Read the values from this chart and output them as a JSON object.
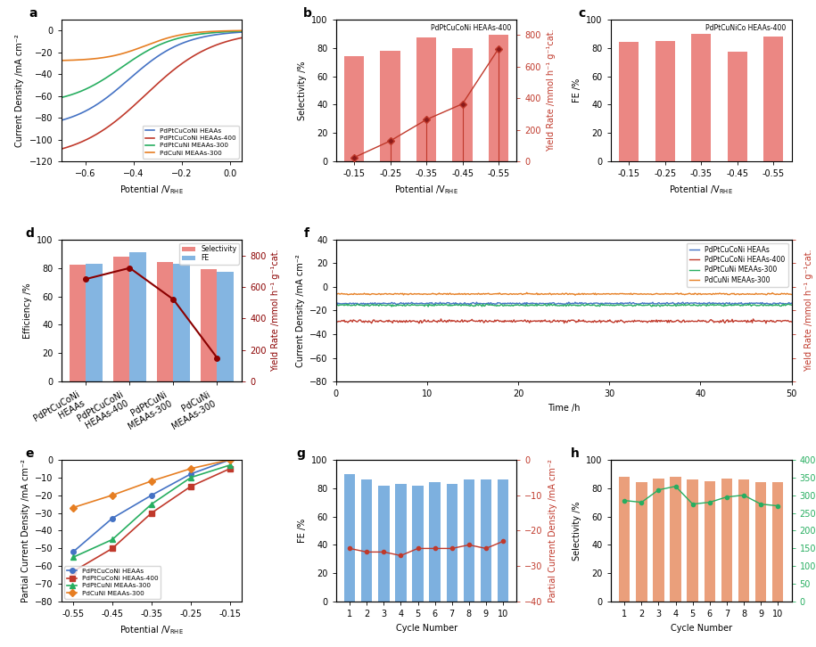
{
  "panel_a": {
    "xlabel": "Potential /VRhe",
    "ylabel": "Current Density /mA cm⁻²",
    "xlim": [
      -0.7,
      0.05
    ],
    "ylim": [
      -120,
      10
    ],
    "lines": [
      {
        "label": "PdPtCuCoNi HEAAs",
        "color": "#4472C4"
      },
      {
        "label": "PdPtCuCoNi HEAAs-400",
        "color": "#C0392B"
      },
      {
        "label": "PdPtCuNi MEAAs-300",
        "color": "#27AE60"
      },
      {
        "label": "PdCuNi MEAAs-300",
        "color": "#E67E22"
      }
    ]
  },
  "panel_b": {
    "label_text": "PdPtCuCoNi HEAAs-400",
    "xlabel": "Potential /VRhe",
    "ylabel_left": "Selectivity /%",
    "ylabel_right": "Yield Rate /mmol h⁻¹ g⁻¹cat.",
    "potentials": [
      "-0.15",
      "-0.25",
      "-0.35",
      "-0.45",
      "-0.55"
    ],
    "selectivity": [
      74,
      78,
      87,
      80,
      89
    ],
    "yield_rate": [
      25,
      130,
      265,
      365,
      715
    ],
    "bar_color": "#E8726D",
    "line_color": "#C0392B",
    "marker_color": "#8B1A1A",
    "ylim_left": [
      0,
      100
    ],
    "ylim_right": [
      0,
      900
    ]
  },
  "panel_c": {
    "label_text": "PdPtCuNiCo HEAAs-400",
    "xlabel": "Potential /VRhe",
    "ylabel": "FE /%",
    "potentials": [
      "-0.15",
      "-0.25",
      "-0.35",
      "-0.45",
      "-0.55"
    ],
    "fe_values": [
      84,
      85,
      90,
      77,
      88
    ],
    "bar_color": "#E8726D",
    "ylim": [
      0,
      100
    ]
  },
  "panel_d": {
    "ylabel_left": "Efficiency /%",
    "ylabel_right": "Yield Rate /mmol h⁻¹ g⁻¹cat.",
    "categories": [
      "PdPtCuCoNi\nHEAAs",
      "PdPtCuCoNi\nHEAAs-400",
      "PdPtCuNi\nMEAAs-300",
      "PdCuNi\nMEAAs-300"
    ],
    "selectivity": [
      82,
      88,
      84,
      79
    ],
    "fe": [
      83,
      91,
      83,
      77
    ],
    "yield_rate": [
      650,
      720,
      520,
      150
    ],
    "bar_color_sel": "#E8726D",
    "bar_color_fe": "#6FA8DC",
    "line_color": "#8B0000",
    "ylim_left": [
      0,
      100
    ],
    "ylim_right": [
      0,
      900
    ]
  },
  "panel_e": {
    "xlabel": "Potential /VRhe",
    "ylabel": "Partial Current Density /mA cm⁻²",
    "potentials": [
      -0.15,
      -0.25,
      -0.35,
      -0.45,
      -0.55
    ],
    "xlim": [
      -0.6,
      -0.1
    ],
    "ylim": [
      -80,
      0
    ],
    "blue": [
      0,
      -8,
      -20,
      -33,
      -52
    ],
    "red": [
      -5,
      -15,
      -30,
      -50,
      -63
    ],
    "green": [
      -3,
      -10,
      -25,
      -45,
      -55
    ],
    "orange": [
      0,
      -5,
      -12,
      -20,
      -27
    ],
    "lines": [
      {
        "label": "PdPtCuCoNi HEAAs",
        "color": "#4472C4"
      },
      {
        "label": "PdPtCuCoNi HEAAs-400",
        "color": "#C0392B"
      },
      {
        "label": "PdPtCuNi MEAAs-300",
        "color": "#27AE60"
      },
      {
        "label": "PdCuNi MEAAs-300",
        "color": "#E67E22"
      }
    ]
  },
  "panel_f": {
    "xlabel": "Time /h",
    "ylabel": "Current Density /mA cm⁻²",
    "xlim": [
      0,
      50
    ],
    "ylim": [
      -80,
      40
    ],
    "blue_val": -14,
    "red_val": -29,
    "green_val": -14,
    "orange_val": -6,
    "lines": [
      {
        "label": "PdPtCuCoNi HEAAs",
        "color": "#4472C4"
      },
      {
        "label": "PdPtCuCoNi HEAAs-400",
        "color": "#C0392B"
      },
      {
        "label": "PdPtCuNi MEAAs-300",
        "color": "#27AE60"
      },
      {
        "label": "PdCuNi MEAAs-300",
        "color": "#E67E22"
      }
    ]
  },
  "panel_g": {
    "xlabel": "Cycle Number",
    "ylabel_left": "FE /%",
    "ylabel_right": "Partial Current Density /mA cm⁻²",
    "cycles": [
      1,
      2,
      3,
      4,
      5,
      6,
      7,
      8,
      9,
      10
    ],
    "fe_values": [
      90,
      86,
      82,
      83,
      82,
      84,
      83,
      86,
      86,
      86
    ],
    "current_density": [
      -25,
      -26,
      -26,
      -27,
      -25,
      -25,
      -25,
      -24,
      -25,
      -23
    ],
    "bar_color": "#6FA8DC",
    "line_color": "#C0392B",
    "ylim_left": [
      0,
      100
    ],
    "ylim_right": [
      0,
      40
    ],
    "yticks_right": [
      0,
      -10,
      -20,
      -30,
      -40
    ]
  },
  "panel_h": {
    "xlabel": "Cycle Number",
    "ylabel_left": "Selectivity /%",
    "ylabel_right": "Yield Rate /mmol h⁻¹ g⁻¹cat.",
    "cycles": [
      1,
      2,
      3,
      4,
      5,
      6,
      7,
      8,
      9,
      10
    ],
    "selectivity": [
      88,
      84,
      87,
      88,
      86,
      85,
      87,
      86,
      84,
      84
    ],
    "yield_rate": [
      285,
      280,
      315,
      325,
      275,
      280,
      295,
      300,
      275,
      270
    ],
    "bar_color": "#E8956D",
    "line_color": "#27AE60",
    "ylim_left": [
      0,
      100
    ],
    "ylim_right": [
      0,
      400
    ]
  },
  "bg_color": "#ffffff",
  "font_size": 7,
  "label_fontsize": 10
}
